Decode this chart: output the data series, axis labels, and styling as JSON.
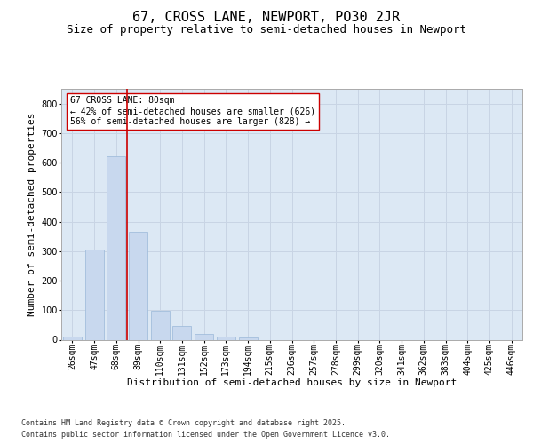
{
  "title": "67, CROSS LANE, NEWPORT, PO30 2JR",
  "subtitle": "Size of property relative to semi-detached houses in Newport",
  "xlabel": "Distribution of semi-detached houses by size in Newport",
  "ylabel": "Number of semi-detached properties",
  "categories": [
    "26sqm",
    "47sqm",
    "68sqm",
    "89sqm",
    "110sqm",
    "131sqm",
    "152sqm",
    "173sqm",
    "194sqm",
    "215sqm",
    "236sqm",
    "257sqm",
    "278sqm",
    "299sqm",
    "320sqm",
    "341sqm",
    "362sqm",
    "383sqm",
    "404sqm",
    "425sqm",
    "446sqm"
  ],
  "values": [
    12,
    305,
    620,
    365,
    98,
    48,
    20,
    10,
    8,
    0,
    0,
    0,
    0,
    0,
    0,
    0,
    0,
    0,
    0,
    0,
    0
  ],
  "bar_color": "#c8d8ee",
  "bar_edge_color": "#9ab8d8",
  "grid_color": "#c8d4e4",
  "background_color": "#dce8f4",
  "vline_color": "#cc0000",
  "vline_x": 2.5,
  "annotation_text": "67 CROSS LANE: 80sqm\n← 42% of semi-detached houses are smaller (626)\n56% of semi-detached houses are larger (828) →",
  "annotation_box_color": "#ffffff",
  "annotation_box_edge": "#cc0000",
  "ylim": [
    0,
    850
  ],
  "yticks": [
    0,
    100,
    200,
    300,
    400,
    500,
    600,
    700,
    800
  ],
  "footer_line1": "Contains HM Land Registry data © Crown copyright and database right 2025.",
  "footer_line2": "Contains public sector information licensed under the Open Government Licence v3.0.",
  "title_fontsize": 11,
  "subtitle_fontsize": 9,
  "axis_label_fontsize": 8,
  "tick_fontsize": 7,
  "annotation_fontsize": 7,
  "footer_fontsize": 6
}
